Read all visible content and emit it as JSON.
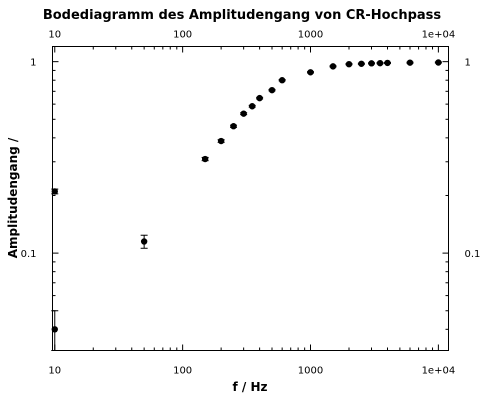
{
  "chart_data": {
    "type": "scatter",
    "title": "Bodediagramm des Amplitudengang von CR-Hochpass",
    "xlabel": "f / Hz",
    "ylabel": "Amplitudengang /",
    "xscale": "log",
    "yscale": "log",
    "xlim": [
      9.6,
      12000
    ],
    "ylim": [
      0.031,
      1.2
    ],
    "grid": false,
    "legend": "none",
    "x_ticks": [
      {
        "value": 10,
        "label": "10"
      },
      {
        "value": 100,
        "label": "100"
      },
      {
        "value": 1000,
        "label": "1000"
      },
      {
        "value": 10000,
        "label": "1e+04"
      }
    ],
    "y_ticks": [
      {
        "value": 0.1,
        "label": "0.1"
      },
      {
        "value": 1,
        "label": "1"
      }
    ],
    "points": [
      {
        "x": 10,
        "y": 0.21,
        "yerr": 0.006,
        "xerr": 0.4
      },
      {
        "x": 10,
        "y": 0.04,
        "yerr": 0.01,
        "xerr": 0.4
      },
      {
        "x": 50,
        "y": 0.115,
        "yerr": 0.009,
        "xerr": 1.0
      },
      {
        "x": 150,
        "y": 0.31,
        "yerr": 0.006,
        "xerr": 6
      },
      {
        "x": 200,
        "y": 0.385,
        "yerr": 0.006,
        "xerr": 6
      },
      {
        "x": 250,
        "y": 0.46,
        "yerr": 0.006,
        "xerr": 8
      },
      {
        "x": 300,
        "y": 0.535,
        "yerr": 0.006,
        "xerr": 8
      },
      {
        "x": 350,
        "y": 0.585,
        "yerr": 0.006,
        "xerr": 10
      },
      {
        "x": 400,
        "y": 0.645,
        "yerr": 0.006,
        "xerr": 10
      },
      {
        "x": 500,
        "y": 0.71,
        "yerr": 0.006,
        "xerr": 15
      },
      {
        "x": 600,
        "y": 0.8,
        "yerr": 0.006,
        "xerr": 20
      },
      {
        "x": 1000,
        "y": 0.88,
        "yerr": 0.006,
        "xerr": 30
      },
      {
        "x": 1500,
        "y": 0.945,
        "yerr": 0.006,
        "xerr": 60
      },
      {
        "x": 2000,
        "y": 0.97,
        "yerr": 0.006,
        "xerr": 80
      },
      {
        "x": 2500,
        "y": 0.975,
        "yerr": 0.006,
        "xerr": 100
      },
      {
        "x": 3000,
        "y": 0.98,
        "yerr": 0.006,
        "xerr": 120
      },
      {
        "x": 3500,
        "y": 0.982,
        "yerr": 0.006,
        "xerr": 140
      },
      {
        "x": 4000,
        "y": 0.985,
        "yerr": 0.006,
        "xerr": 160
      },
      {
        "x": 6000,
        "y": 0.988,
        "yerr": 0.006,
        "xerr": 240
      },
      {
        "x": 10000,
        "y": 0.99,
        "yerr": 0.006,
        "xerr": 400
      }
    ]
  }
}
